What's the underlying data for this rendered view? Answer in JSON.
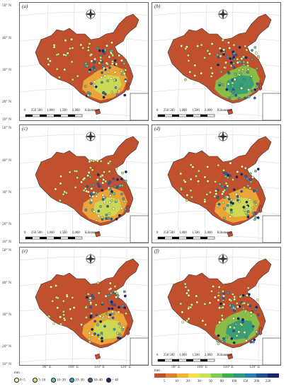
{
  "panels": [
    {
      "id": "a",
      "label": "(a)",
      "scalebar": [
        "0",
        "250 500",
        "1,000",
        "1,500",
        "2,000",
        "Kilometers"
      ]
    },
    {
      "id": "b",
      "label": "(b)",
      "scalebar": [
        "0",
        "250 500",
        "1,000",
        "1,500",
        "2,000",
        "Kilometers"
      ]
    },
    {
      "id": "c",
      "label": "(c)",
      "scalebar": [
        "0",
        "250 500",
        "1,000",
        "1,500",
        "2,000",
        "Kilometers"
      ]
    },
    {
      "id": "d",
      "label": "(d)",
      "scalebar": [
        "0",
        "250 500",
        "1,000",
        "1,500",
        "2,000",
        "Kilometers"
      ]
    },
    {
      "id": "e",
      "label": "(e)",
      "scalebar": []
    },
    {
      "id": "f",
      "label": "(f)",
      "scalebar": [
        "0",
        "250 500",
        "1,000",
        "1,500",
        "2,000",
        "Kilometers"
      ]
    }
  ],
  "lat_labels": [
    "50° N",
    "40° N",
    "30° N",
    "20° N",
    "10° N"
  ],
  "lon_labels_left": [
    "90° E",
    "100° E",
    "110° E",
    "120° E"
  ],
  "lon_labels_right": [
    "90° E",
    "100° E",
    "110° E",
    "120° E"
  ],
  "dot_legend": {
    "title": "mm",
    "items": [
      "0~5",
      "5~10",
      "10~20",
      "20~30",
      "30~40",
      "> 40"
    ],
    "colors": [
      "#f7f7b0",
      "#c9e56d",
      "#66c6a5",
      "#3aa0c9",
      "#2a62b0",
      "#0d2a7a"
    ]
  },
  "raster_legend": {
    "title": "mm",
    "ticks": [
      "5",
      "10",
      "20",
      "30",
      "50",
      "80",
      "100",
      "150",
      "200",
      "220"
    ],
    "colors": [
      "#c1502e",
      "#e0812c",
      "#f2b33a",
      "#f6e04b",
      "#c8e35a",
      "#7fcf4e",
      "#3cb34a",
      "#2c9a7c",
      "#2b7bb5",
      "#1f4e99",
      "#14256d"
    ]
  }
}
